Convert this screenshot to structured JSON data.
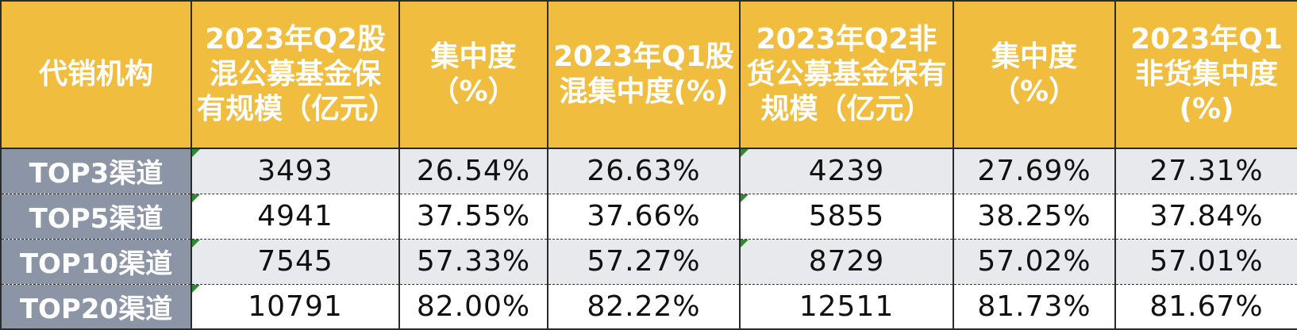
{
  "headers": [
    "代销机构",
    "2023年Q2股混公募基金保有规模（亿元）",
    "集中度（%）",
    "2023年Q1股混集中度(%)",
    "2023年Q2非货公募基金保有规模（亿元）",
    "集中度（%）",
    "2023年Q1非货集中度(%)"
  ],
  "rows": [
    {
      "label": "TOP3渠道",
      "cells": [
        "3493",
        "26.54%",
        "26.63%",
        "4239",
        "27.69%",
        "27.31%"
      ]
    },
    {
      "label": "TOP5渠道",
      "cells": [
        "4941",
        "37.55%",
        "37.66%",
        "5855",
        "38.25%",
        "37.84%"
      ]
    },
    {
      "label": "TOP10渠道",
      "cells": [
        "7545",
        "57.33%",
        "57.27%",
        "8729",
        "57.02%",
        "57.01%"
      ]
    },
    {
      "label": "TOP20渠道",
      "cells": [
        "10791",
        "82.00%",
        "82.22%",
        "12511",
        "81.73%",
        "81.67%"
      ]
    }
  ],
  "colors": {
    "header_bg": "#f0bd3f",
    "label_bg": "#8b95a6",
    "alt_row_bg": "#e8e9ec",
    "flag": "#2e8b2e"
  }
}
